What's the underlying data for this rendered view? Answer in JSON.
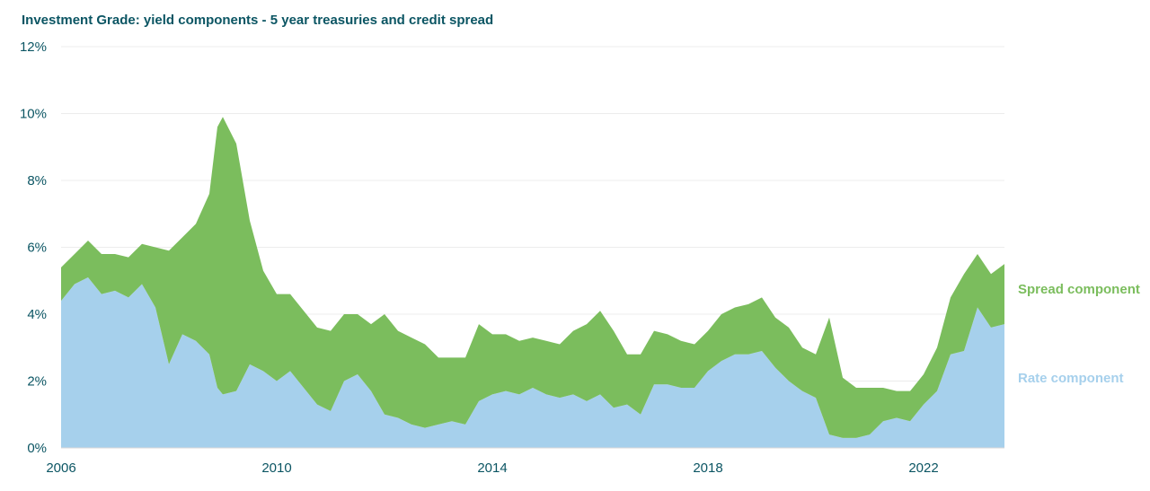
{
  "chart_data": {
    "type": "area",
    "title": "Investment Grade: yield components - 5 year treasuries and credit spread",
    "xlabel": "",
    "ylabel": "",
    "stacked": true,
    "y_tick_labels": [
      "0%",
      "2%",
      "4%",
      "6%",
      "8%",
      "10%",
      "12%"
    ],
    "y_ticks": [
      0,
      2,
      4,
      6,
      8,
      10,
      12
    ],
    "x_tick_labels": [
      "2006",
      "2010",
      "2014",
      "2018",
      "2022"
    ],
    "x_ticks": [
      2006,
      2010,
      2014,
      2018,
      2022
    ],
    "xlim": [
      2006,
      2023.5
    ],
    "ylim": [
      0,
      12
    ],
    "grid": true,
    "legend": "right",
    "x": [
      2006.0,
      2006.25,
      2006.5,
      2006.75,
      2007.0,
      2007.25,
      2007.5,
      2007.75,
      2008.0,
      2008.25,
      2008.5,
      2008.75,
      2008.9,
      2009.0,
      2009.25,
      2009.5,
      2009.75,
      2010.0,
      2010.25,
      2010.5,
      2010.75,
      2011.0,
      2011.25,
      2011.5,
      2011.75,
      2012.0,
      2012.25,
      2012.5,
      2012.75,
      2013.0,
      2013.25,
      2013.5,
      2013.75,
      2014.0,
      2014.25,
      2014.5,
      2014.75,
      2015.0,
      2015.25,
      2015.5,
      2015.75,
      2016.0,
      2016.25,
      2016.5,
      2016.75,
      2017.0,
      2017.25,
      2017.5,
      2017.75,
      2018.0,
      2018.25,
      2018.5,
      2018.75,
      2019.0,
      2019.25,
      2019.5,
      2019.75,
      2020.0,
      2020.25,
      2020.5,
      2020.75,
      2021.0,
      2021.25,
      2021.5,
      2021.75,
      2022.0,
      2022.25,
      2022.5,
      2022.75,
      2023.0,
      2023.25,
      2023.5
    ],
    "series": [
      {
        "name": "Rate component",
        "color": "#a6d0ec",
        "values": [
          4.4,
          4.9,
          5.1,
          4.6,
          4.7,
          4.5,
          4.9,
          4.2,
          2.5,
          3.4,
          3.2,
          2.8,
          1.8,
          1.6,
          1.7,
          2.5,
          2.3,
          2.0,
          2.3,
          1.8,
          1.3,
          1.1,
          2.0,
          2.2,
          1.7,
          1.0,
          0.9,
          0.7,
          0.6,
          0.7,
          0.8,
          0.7,
          1.4,
          1.6,
          1.7,
          1.6,
          1.8,
          1.6,
          1.5,
          1.6,
          1.4,
          1.6,
          1.2,
          1.3,
          1.0,
          1.9,
          1.9,
          1.8,
          1.8,
          2.3,
          2.6,
          2.8,
          2.8,
          2.9,
          2.4,
          2.0,
          1.7,
          1.5,
          0.4,
          0.3,
          0.3,
          0.4,
          0.8,
          0.9,
          0.8,
          1.3,
          1.7,
          2.8,
          2.9,
          4.2,
          3.6,
          3.7
        ]
      },
      {
        "name": "Spread component",
        "color": "#7bbd5d",
        "values": [
          1.0,
          0.9,
          1.1,
          1.2,
          1.1,
          1.2,
          1.2,
          1.8,
          3.4,
          2.9,
          3.5,
          4.8,
          7.8,
          8.3,
          7.4,
          4.3,
          3.0,
          2.6,
          2.3,
          2.3,
          2.3,
          2.4,
          2.0,
          1.8,
          2.0,
          3.0,
          2.6,
          2.6,
          2.5,
          2.0,
          1.9,
          2.0,
          2.3,
          1.8,
          1.7,
          1.6,
          1.5,
          1.6,
          1.6,
          1.9,
          2.3,
          2.5,
          2.3,
          1.5,
          1.8,
          1.6,
          1.5,
          1.4,
          1.3,
          1.2,
          1.4,
          1.4,
          1.5,
          1.6,
          1.5,
          1.6,
          1.3,
          1.3,
          3.5,
          1.8,
          1.5,
          1.4,
          1.0,
          0.8,
          0.9,
          0.9,
          1.3,
          1.7,
          2.3,
          1.6,
          1.6,
          1.8
        ]
      }
    ]
  }
}
